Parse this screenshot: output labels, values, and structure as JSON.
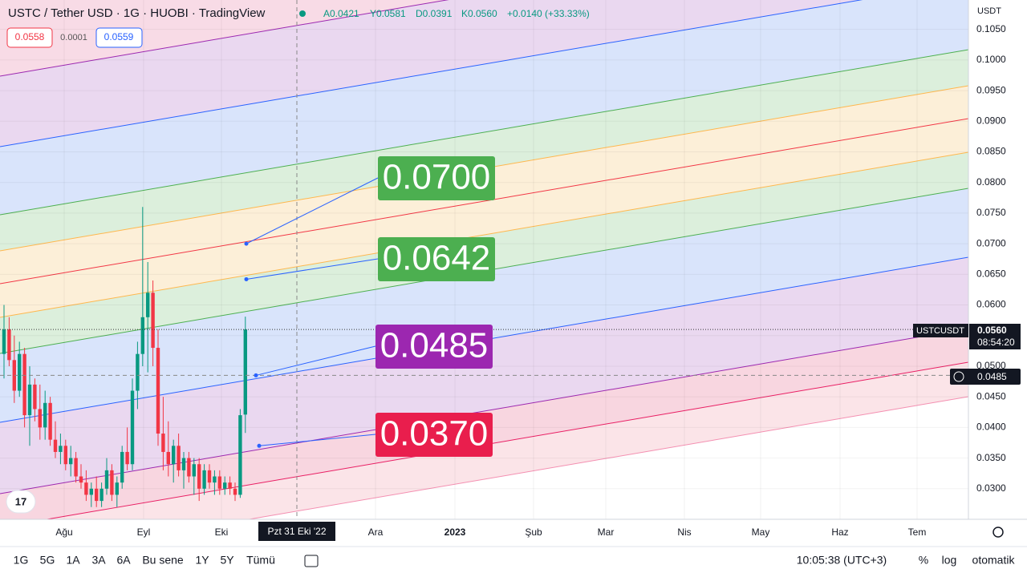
{
  "header": {
    "symbol": "USTC / Tether USD · 1G · HUOBI · TradingView",
    "ohlc": [
      "A0.0421",
      "Y0.0581",
      "D0.0391",
      "K0.0560"
    ],
    "change": "+0.0140 (+33.33%)"
  },
  "order": {
    "sell": "0.0558",
    "spread": "0.0001",
    "buy": "0.0559"
  },
  "chart_data": {
    "type": "candlestick",
    "up_color": "#089981",
    "down_color": "#f23645",
    "ohlc": [
      [
        0.052,
        0.06,
        0.048,
        0.056
      ],
      [
        0.056,
        0.058,
        0.05,
        0.051
      ],
      [
        0.051,
        0.055,
        0.044,
        0.046
      ],
      [
        0.046,
        0.054,
        0.045,
        0.052
      ],
      [
        0.052,
        0.053,
        0.04,
        0.042
      ],
      [
        0.042,
        0.05,
        0.037,
        0.047
      ],
      [
        0.047,
        0.048,
        0.041,
        0.043
      ],
      [
        0.043,
        0.047,
        0.038,
        0.04
      ],
      [
        0.04,
        0.046,
        0.038,
        0.044
      ],
      [
        0.044,
        0.045,
        0.037,
        0.038
      ],
      [
        0.038,
        0.041,
        0.035,
        0.036
      ],
      [
        0.036,
        0.039,
        0.034,
        0.037
      ],
      [
        0.037,
        0.038,
        0.033,
        0.034
      ],
      [
        0.034,
        0.037,
        0.032,
        0.035
      ],
      [
        0.035,
        0.036,
        0.031,
        0.032
      ],
      [
        0.032,
        0.034,
        0.03,
        0.031
      ],
      [
        0.031,
        0.033,
        0.028,
        0.029
      ],
      [
        0.029,
        0.031,
        0.027,
        0.03
      ],
      [
        0.03,
        0.032,
        0.027,
        0.028
      ],
      [
        0.028,
        0.031,
        0.027,
        0.03
      ],
      [
        0.03,
        0.035,
        0.029,
        0.033
      ],
      [
        0.033,
        0.034,
        0.028,
        0.029
      ],
      [
        0.029,
        0.032,
        0.027,
        0.031
      ],
      [
        0.031,
        0.037,
        0.03,
        0.036
      ],
      [
        0.036,
        0.04,
        0.033,
        0.034
      ],
      [
        0.034,
        0.048,
        0.033,
        0.046
      ],
      [
        0.046,
        0.054,
        0.043,
        0.052
      ],
      [
        0.052,
        0.076,
        0.05,
        0.058
      ],
      [
        0.058,
        0.067,
        0.049,
        0.062
      ],
      [
        0.062,
        0.064,
        0.05,
        0.053
      ],
      [
        0.053,
        0.056,
        0.037,
        0.039
      ],
      [
        0.039,
        0.045,
        0.033,
        0.036
      ],
      [
        0.036,
        0.041,
        0.032,
        0.034
      ],
      [
        0.034,
        0.038,
        0.031,
        0.037
      ],
      [
        0.037,
        0.039,
        0.032,
        0.033
      ],
      [
        0.033,
        0.036,
        0.03,
        0.035
      ],
      [
        0.035,
        0.036,
        0.031,
        0.032
      ],
      [
        0.032,
        0.035,
        0.029,
        0.034
      ],
      [
        0.034,
        0.035,
        0.028,
        0.03
      ],
      [
        0.03,
        0.034,
        0.029,
        0.033
      ],
      [
        0.033,
        0.034,
        0.03,
        0.031
      ],
      [
        0.031,
        0.033,
        0.029,
        0.032
      ],
      [
        0.032,
        0.033,
        0.029,
        0.03
      ],
      [
        0.03,
        0.032,
        0.029,
        0.031
      ],
      [
        0.031,
        0.032,
        0.029,
        0.03
      ],
      [
        0.03,
        0.031,
        0.028,
        0.029
      ],
      [
        0.029,
        0.043,
        0.0285,
        0.042
      ],
      [
        0.0421,
        0.0581,
        0.0391,
        0.056
      ]
    ],
    "ylim": [
      0.025,
      0.1098
    ],
    "yticks": [
      {
        "value": 0.105,
        "label": "0.1050"
      },
      {
        "value": 0.1,
        "label": "0.1000"
      },
      {
        "value": 0.095,
        "label": "0.0950"
      },
      {
        "value": 0.09,
        "label": "0.0900"
      },
      {
        "value": 0.085,
        "label": "0.0850"
      },
      {
        "value": 0.08,
        "label": "0.0800"
      },
      {
        "value": 0.075,
        "label": "0.0750"
      },
      {
        "value": 0.07,
        "label": "0.0700"
      },
      {
        "value": 0.065,
        "label": "0.0650"
      },
      {
        "value": 0.06,
        "label": "0.0600"
      },
      {
        "value": 0.055,
        "label": "0.0550"
      },
      {
        "value": 0.05,
        "label": "0.0500"
      },
      {
        "value": 0.045,
        "label": "0.0450"
      },
      {
        "value": 0.04,
        "label": "0.0400"
      },
      {
        "value": 0.035,
        "label": "0.0350"
      },
      {
        "value": 0.03,
        "label": "0.0300"
      }
    ],
    "xticks": [
      "Ağu",
      "Eyl",
      "Eki",
      "Ara",
      "2023",
      "Şub",
      "Mar",
      "Nis",
      "May",
      "Haz",
      "Tem"
    ],
    "currency": "USDT",
    "price_lines": [
      {
        "value": 0.07,
        "label": "0.0700",
        "color": "#4caf50"
      },
      {
        "value": 0.0642,
        "label": "0.0642",
        "color": "#4caf50"
      },
      {
        "value": 0.0485,
        "label": "0.0485",
        "color": "#9c27b0"
      },
      {
        "value": 0.037,
        "label": "0.0370",
        "color": "#e91e4d"
      }
    ],
    "last": {
      "symbol": "USTCUSDT",
      "value": 0.056,
      "label": "0.0560",
      "countdown": "08:54:20"
    },
    "crosshair": {
      "value": 0.0485,
      "label": "0.0485",
      "date": "Pzt 31 Eki '22"
    }
  },
  "toolbar": {
    "ranges": [
      "1G",
      "5G",
      "1A",
      "3A",
      "6A",
      "Bu sene",
      "1Y",
      "5Y",
      "Tümü"
    ],
    "time": "10:05:38 (UTC+3)",
    "options": [
      "%",
      "log",
      "otomatik"
    ]
  }
}
